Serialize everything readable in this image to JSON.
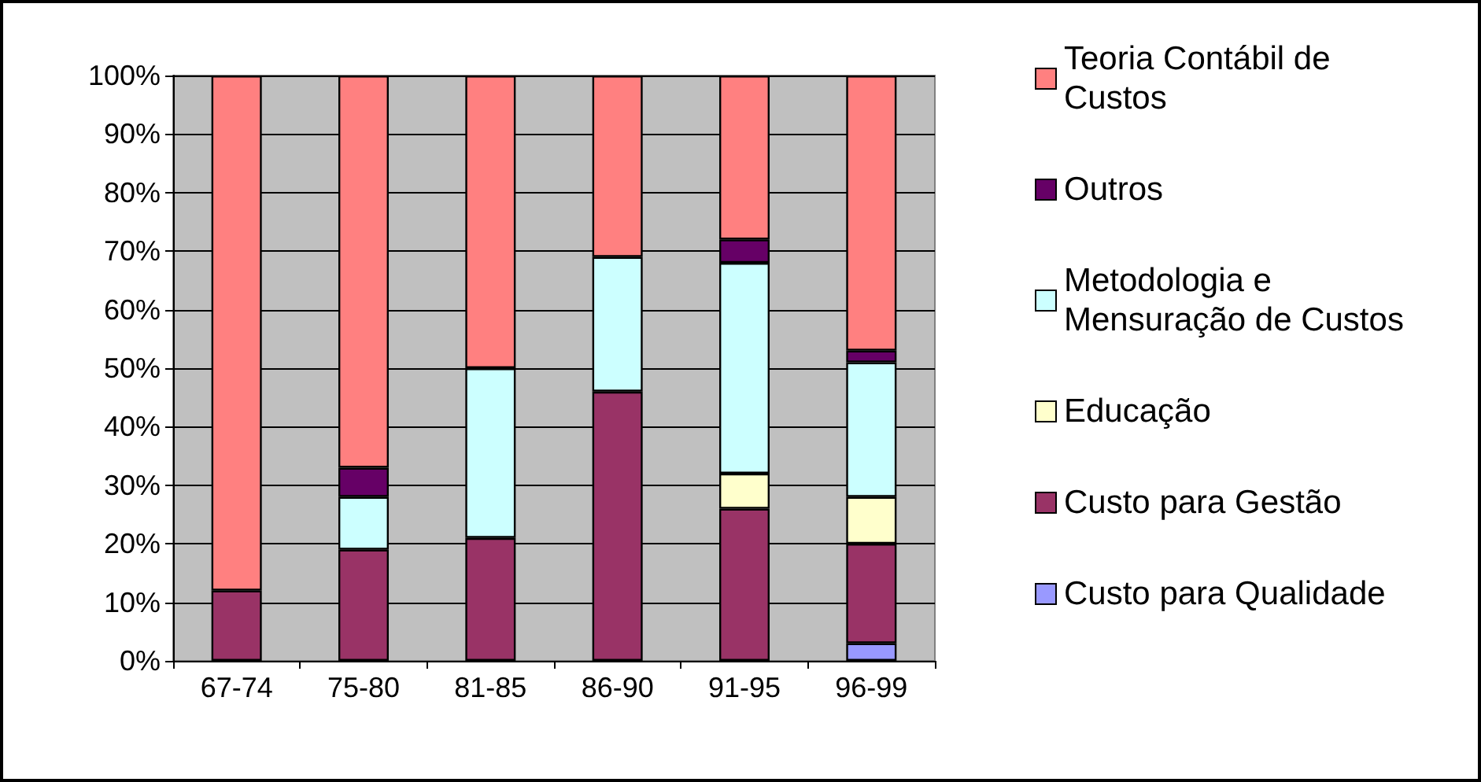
{
  "chart_data": {
    "type": "bar",
    "stacked": true,
    "categories": [
      "67-74",
      "75-80",
      "81-85",
      "86-90",
      "91-95",
      "96-99"
    ],
    "series": [
      {
        "name": "Custo para Qualidade",
        "color": "#9999ff",
        "values": [
          null,
          null,
          null,
          null,
          null,
          3
        ]
      },
      {
        "name": "Custo para Gestão",
        "color": "#993366",
        "values": [
          12,
          19,
          21,
          46,
          26,
          17
        ]
      },
      {
        "name": "Educação",
        "color": "#ffffcc",
        "values": [
          null,
          null,
          null,
          null,
          6,
          8
        ]
      },
      {
        "name": "Metodologia e Mensuração de Custos",
        "color": "#ccffff",
        "values": [
          null,
          9,
          29,
          23,
          36,
          23
        ]
      },
      {
        "name": "Outros",
        "color": "#660066",
        "values": [
          null,
          5,
          null,
          null,
          4,
          2
        ]
      },
      {
        "name": "Teoria Contábil de Custos",
        "color": "#ff8080",
        "values": [
          88,
          67,
          50,
          31,
          28,
          47
        ]
      }
    ],
    "ylim": [
      0,
      100
    ],
    "yticks": [
      {
        "value": 0,
        "label": "0%"
      },
      {
        "value": 10,
        "label": "10%"
      },
      {
        "value": 20,
        "label": "20%"
      },
      {
        "value": 30,
        "label": "30%"
      },
      {
        "value": 40,
        "label": "40%"
      },
      {
        "value": 50,
        "label": "50%"
      },
      {
        "value": 60,
        "label": "60%"
      },
      {
        "value": 70,
        "label": "70%"
      },
      {
        "value": 80,
        "label": "80%"
      },
      {
        "value": 90,
        "label": "90%"
      },
      {
        "value": 100,
        "label": "100%"
      }
    ],
    "grid": "y",
    "legend": "right"
  }
}
